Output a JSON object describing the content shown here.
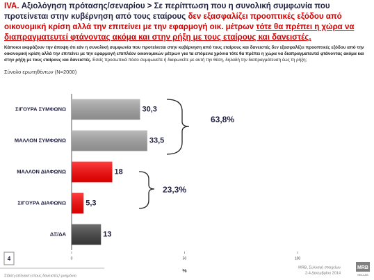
{
  "header": {
    "title_parts": [
      "IVA.",
      "Αξιολόγηση πρότασης/σεναρίου >",
      "Σε περίπτωση που η συνολική συμφωνία που προτείνεται στην κυβέρνηση από τους εταίρους",
      "δεν εξασφαλίζει προοπτικές εξόδου από οικονομική κρίση αλλά την επιτείνει με την εφαρμογή οικ. μέτρων",
      "τότε θα πρέπει η χώρα να διαπραγματευτεί φτάνοντας ακόμα και στην ρήξη με τους εταίρους και δανειστές."
    ]
  },
  "question": {
    "bold": "Κάποιοι εκφράζουν την άποψη ότι εάν η συνολική συμφωνία που προτείνεται στην κυβέρνηση από τους εταίρους και δανειστές δεν εξασφαλίζει προοπτικές εξόδου από την οικονομική κρίση αλλά την επιτείνει με την εφαρμογή επιπλέον οικονομικών μέτρων για τα επόμενα χρόνια τότε θα πρέπει η χώρα να διαπραγματευτεί φτάνοντας ακόμα και στην ρήξη με τους εταίρους και δανειστές.",
    "regular": "Εσείς προσωπικά πόσο συμφωνείτε ή διαφωνείτε με αυτή την θέση, δηλαδή την διαπραγμάτευση έως τη ρήξη;",
    "base": "Σύνολο ερωτηθέντων (N=2000)"
  },
  "chart_data": {
    "type": "bar",
    "orientation": "horizontal",
    "categories": [
      "ΣΙΓΟΥΡΑ ΣΥΜΦΩΝΩ",
      "ΜΑΛΛΟΝ ΣΥΜΦΩΝΩ",
      "ΜΑΛΛΟΝ ΔΙΑΦΩΝΩ",
      "ΣΙΓΟΥΡΑ ΔΙΑΦΩΝΩ",
      "ΔΞ/ΔΑ"
    ],
    "values": [
      30.3,
      33.5,
      18,
      5.3,
      13
    ],
    "value_labels": [
      "30,3",
      "33,5",
      "18",
      "5,3",
      "13"
    ],
    "colors": [
      "#a6a6a6",
      "#a6a6a6",
      "#ff0000",
      "#ff0000",
      "#404040"
    ],
    "xlim": [
      0,
      100
    ],
    "xticks": [
      0,
      50,
      100
    ],
    "xlabel": "%",
    "annotations": [
      "63,8%",
      "23,3%"
    ]
  },
  "footer": {
    "page": "4",
    "section": "Στάση απέναντι στους δανειστές/ μνημόνιο",
    "source": "MRB, Συλλογή στοιχείων",
    "dates": "2-4 Δεκεμβρίου 2014",
    "logo": "MRB",
    "logo_sub": "HELLAS"
  }
}
